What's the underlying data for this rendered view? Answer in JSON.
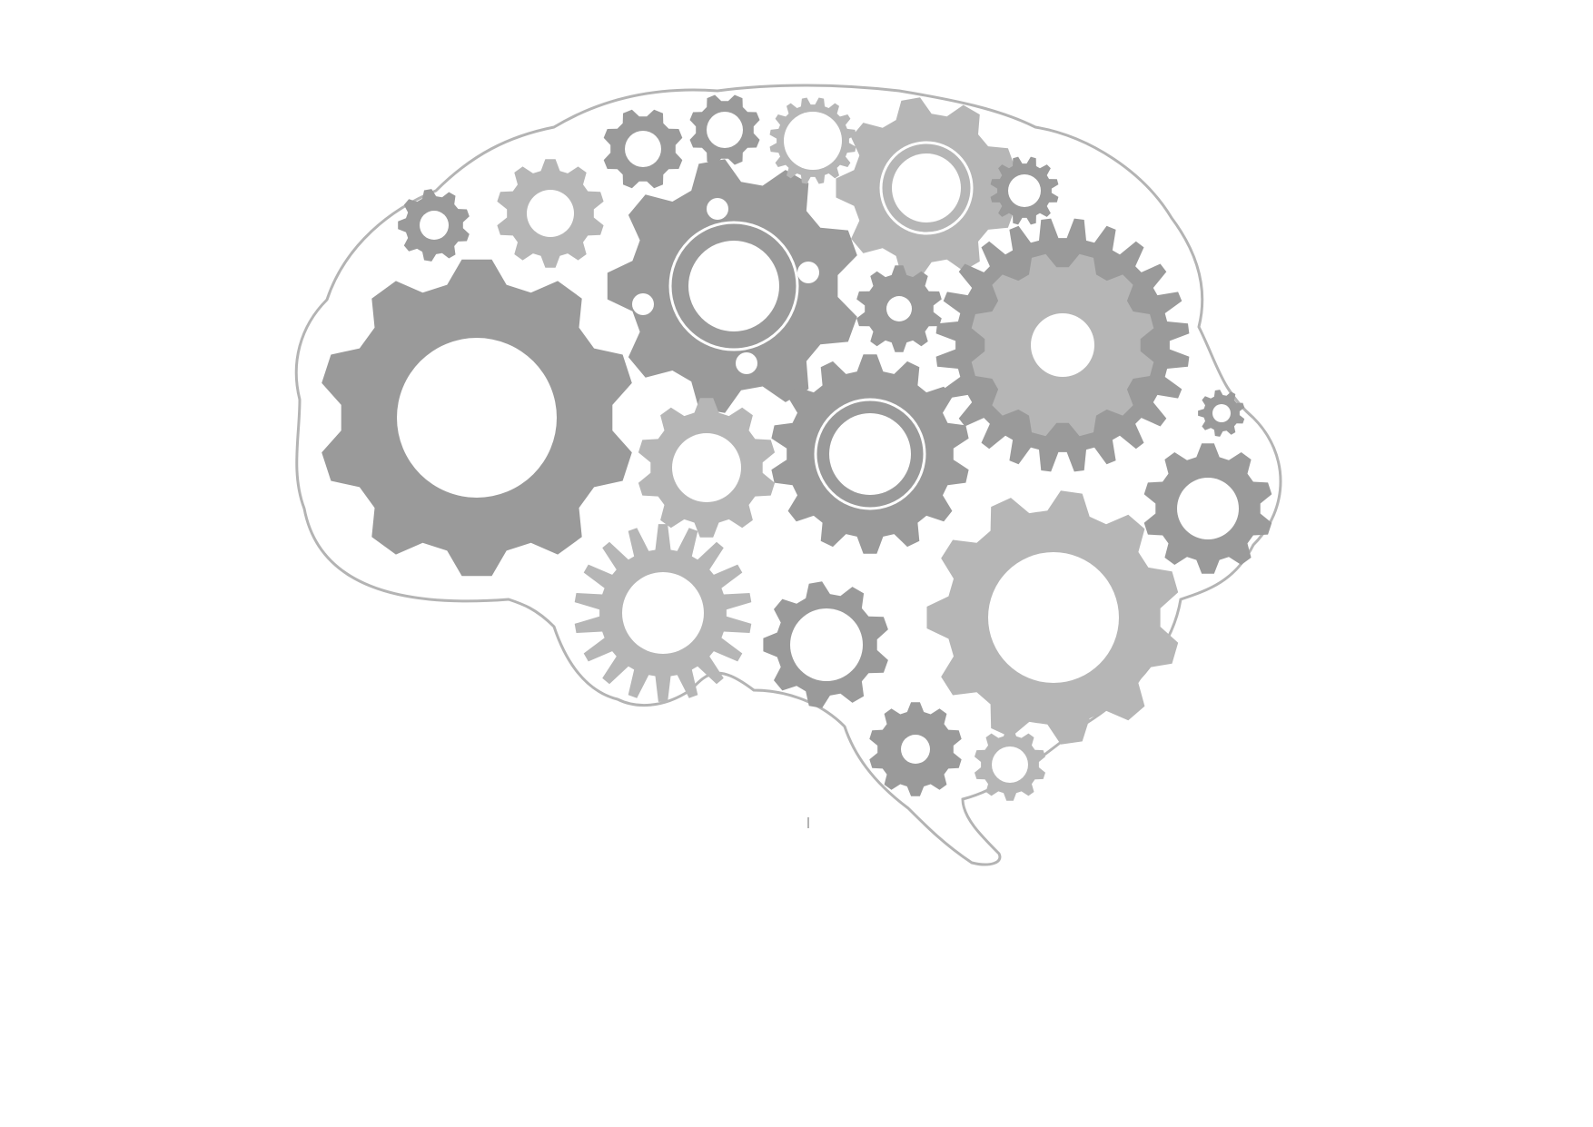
{
  "illustration": {
    "subject": "brain-with-gears",
    "colors": {
      "background": "#ffffff",
      "outline": "#b4b4b4",
      "gear_dark": "#9a9a9a",
      "gear_mid": "#a6a6a6",
      "gear_light": "#b6b6b6",
      "hole": "#ffffff"
    }
  }
}
